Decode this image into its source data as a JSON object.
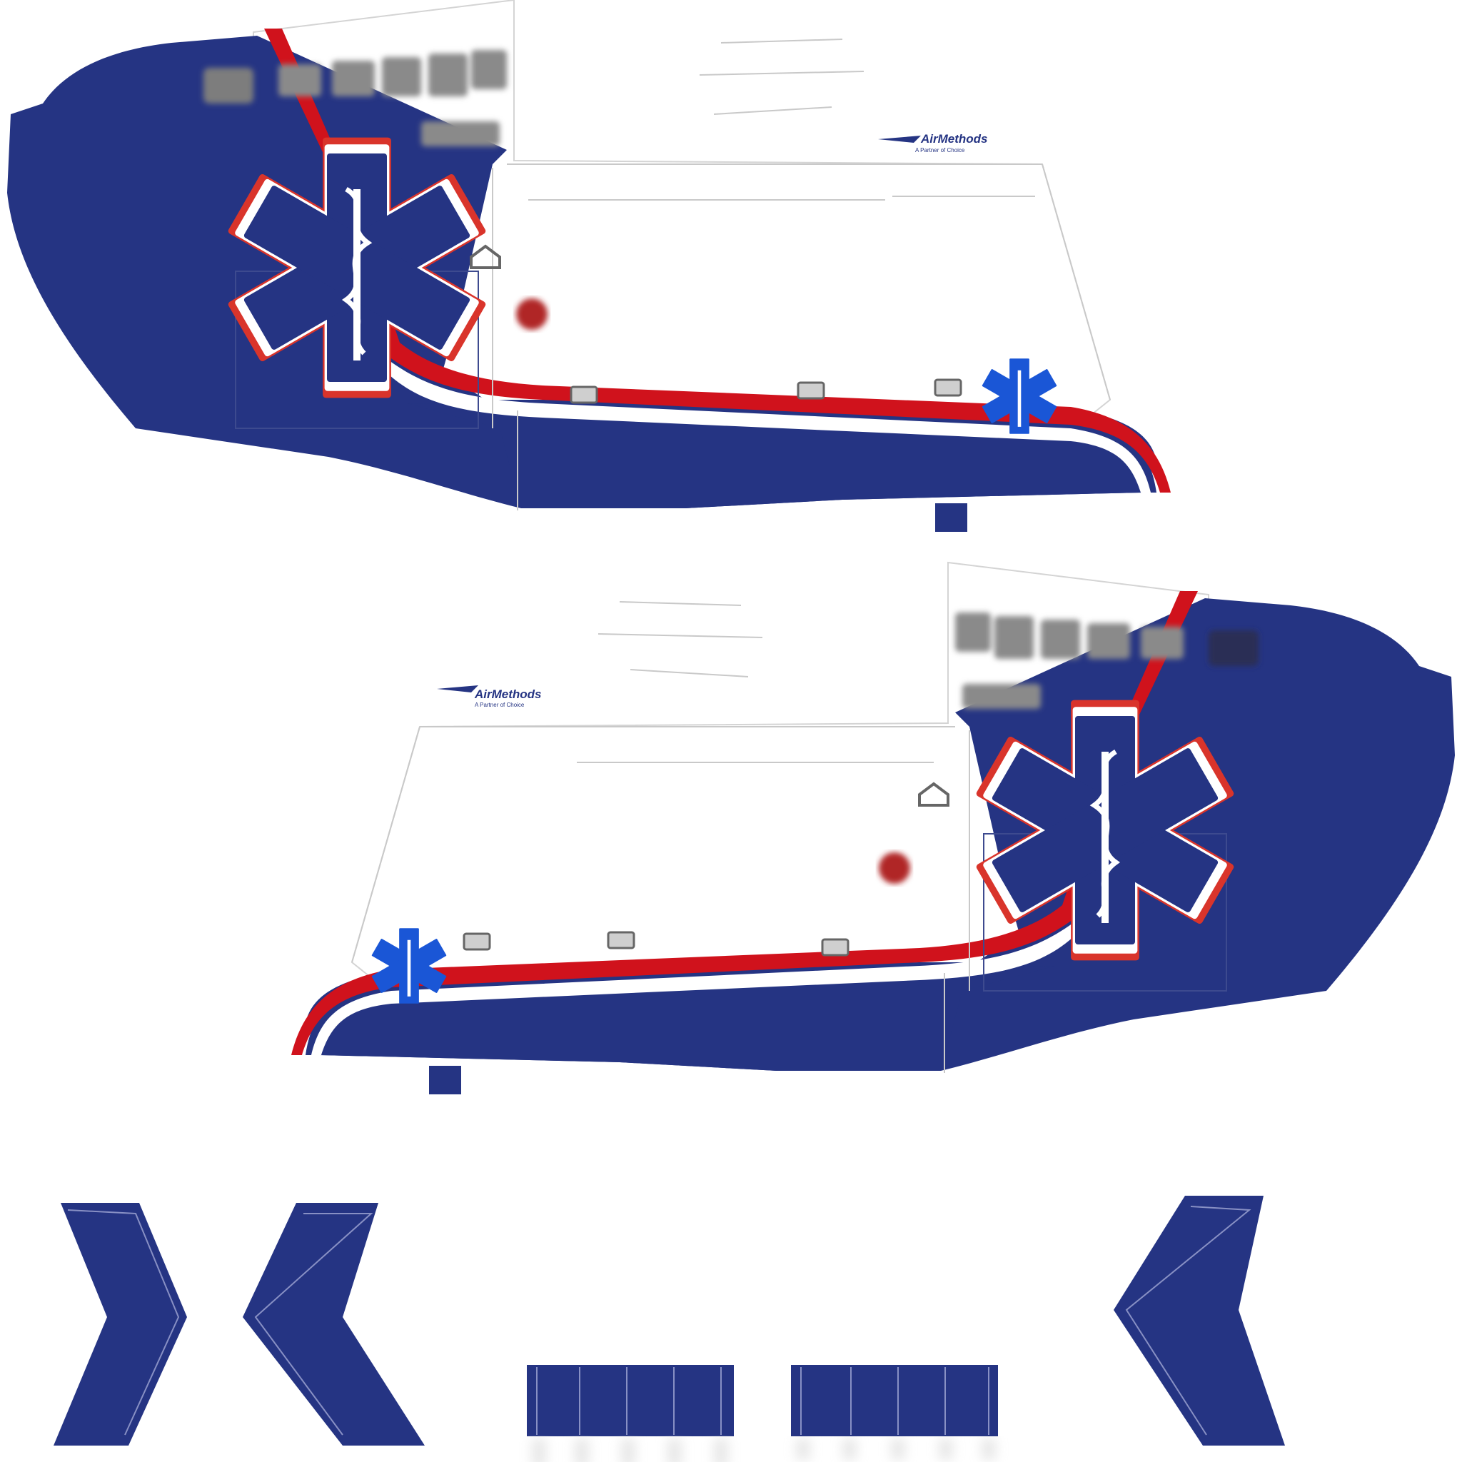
{
  "texture_sheet": {
    "colors": {
      "navy": "#253483",
      "red": "#d0121c",
      "white": "#ffffff",
      "outline": "#c9c9c9",
      "window_gray": "#8a8a8a",
      "star_outline": "#d9342b",
      "small_star_blue": "#1a56d6"
    },
    "panels": [
      {
        "id": "left-side",
        "logo": {
          "brand": "AirMethods",
          "tagline": "A Partner of Choice"
        },
        "emblem": "star-of-life-icon"
      },
      {
        "id": "right-side",
        "logo": {
          "brand": "AirMethods",
          "tagline": "A Partner of Choice"
        },
        "emblem": "star-of-life-icon"
      }
    ],
    "small_parts": [
      {
        "id": "fin-left-outer",
        "icon": "chevron-right-icon"
      },
      {
        "id": "fin-left-inner",
        "icon": "chevron-left-icon"
      },
      {
        "id": "stabilizer-left",
        "icon": "slatted-panel-icon"
      },
      {
        "id": "stabilizer-right",
        "icon": "slatted-panel-icon"
      },
      {
        "id": "fin-right",
        "icon": "chevron-left-icon"
      }
    ]
  }
}
